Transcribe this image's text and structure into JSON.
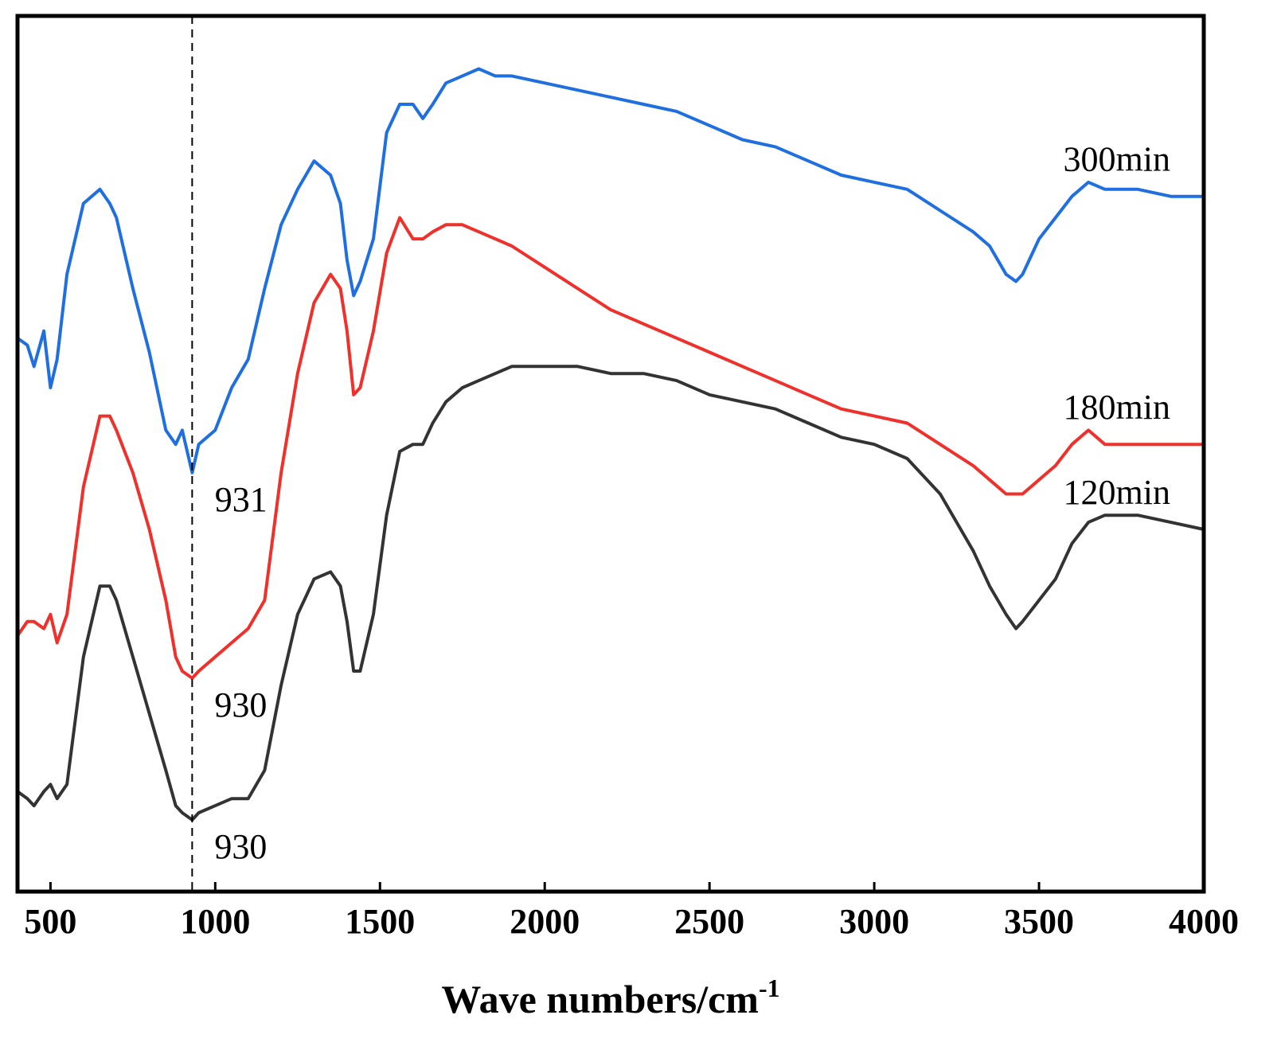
{
  "chart_data": {
    "type": "line",
    "title": "",
    "xlabel": "Wave numbers/cm",
    "xlabel_superscript": "-1",
    "ylabel": "",
    "xlim": [
      400,
      4000
    ],
    "x_ticks": [
      500,
      1000,
      1500,
      2000,
      2500,
      3000,
      3500,
      4000
    ],
    "x_tick_labels": [
      "500",
      "1000",
      "1500",
      "2000",
      "2500",
      "3000",
      "3500",
      "4000"
    ],
    "y_axis_shown": false,
    "grid": false,
    "reference_line": {
      "x": 930,
      "style": "dashed",
      "color": "#000000"
    },
    "series": [
      {
        "name": "300min",
        "color": "#1f6fe0",
        "x": [
          400,
          430,
          450,
          480,
          500,
          520,
          550,
          600,
          650,
          680,
          700,
          750,
          800,
          850,
          880,
          900,
          930,
          950,
          1000,
          1050,
          1100,
          1150,
          1200,
          1250,
          1300,
          1350,
          1380,
          1400,
          1420,
          1440,
          1480,
          1520,
          1560,
          1600,
          1630,
          1660,
          1700,
          1750,
          1800,
          1850,
          1900,
          2000,
          2100,
          2200,
          2300,
          2400,
          2500,
          2600,
          2700,
          2800,
          2900,
          3000,
          3100,
          3200,
          3300,
          3350,
          3400,
          3430,
          3450,
          3500,
          3550,
          3600,
          3650,
          3700,
          3800,
          3900,
          4000
        ],
        "values": [
          77,
          76,
          73,
          78,
          70,
          74,
          86,
          96,
          98,
          96,
          94,
          84,
          75,
          64,
          62,
          64,
          58,
          62,
          64,
          70,
          74,
          84,
          93,
          98,
          102,
          100,
          96,
          88,
          83,
          85,
          91,
          106,
          110,
          110,
          108,
          110,
          113,
          114,
          115,
          114,
          114,
          113,
          112,
          111,
          110,
          109,
          107,
          105,
          104,
          102,
          100,
          99,
          98,
          95,
          92,
          90,
          86,
          85,
          86,
          91,
          94,
          97,
          99,
          98,
          98,
          97,
          97
        ]
      },
      {
        "name": "180min",
        "color": "#f0302a",
        "x": [
          400,
          430,
          450,
          480,
          500,
          520,
          550,
          600,
          650,
          680,
          700,
          750,
          800,
          850,
          880,
          900,
          930,
          950,
          1000,
          1050,
          1100,
          1150,
          1200,
          1250,
          1300,
          1350,
          1380,
          1400,
          1420,
          1440,
          1480,
          1520,
          1560,
          1600,
          1630,
          1660,
          1700,
          1750,
          1800,
          1850,
          1900,
          2000,
          2100,
          2200,
          2300,
          2400,
          2500,
          2600,
          2700,
          2800,
          2900,
          3000,
          3100,
          3200,
          3300,
          3350,
          3400,
          3430,
          3450,
          3500,
          3550,
          3600,
          3650,
          3700,
          3800,
          3900,
          4000
        ],
        "values": [
          35,
          37,
          37,
          36,
          38,
          34,
          38,
          56,
          66,
          66,
          64,
          58,
          50,
          40,
          32,
          30,
          29,
          30,
          32,
          34,
          36,
          40,
          58,
          72,
          82,
          86,
          84,
          78,
          69,
          70,
          78,
          89,
          94,
          91,
          91,
          92,
          93,
          93,
          92,
          91,
          90,
          87,
          84,
          81,
          79,
          77,
          75,
          73,
          71,
          69,
          67,
          66,
          65,
          62,
          59,
          57,
          55,
          55,
          55,
          57,
          59,
          62,
          64,
          62,
          62,
          62,
          62
        ]
      },
      {
        "name": "120min",
        "color": "#333333",
        "x": [
          400,
          430,
          450,
          480,
          500,
          520,
          550,
          600,
          650,
          680,
          700,
          750,
          800,
          850,
          880,
          900,
          930,
          950,
          1000,
          1050,
          1100,
          1150,
          1200,
          1250,
          1300,
          1350,
          1380,
          1400,
          1420,
          1440,
          1480,
          1520,
          1560,
          1600,
          1630,
          1660,
          1700,
          1750,
          1800,
          1850,
          1900,
          2000,
          2100,
          2200,
          2300,
          2400,
          2500,
          2600,
          2700,
          2800,
          2900,
          3000,
          3100,
          3200,
          3300,
          3350,
          3400,
          3430,
          3450,
          3500,
          3550,
          3600,
          3650,
          3700,
          3800,
          3900,
          4000
        ],
        "values": [
          13,
          12,
          11,
          13,
          14,
          12,
          14,
          32,
          42,
          42,
          40,
          32,
          24,
          16,
          11,
          10,
          9,
          10,
          11,
          12,
          12,
          16,
          28,
          38,
          43,
          44,
          42,
          37,
          30,
          30,
          38,
          52,
          61,
          62,
          62,
          65,
          68,
          70,
          71,
          72,
          73,
          73,
          73,
          72,
          72,
          71,
          69,
          68,
          67,
          65,
          63,
          62,
          60,
          55,
          47,
          42,
          38,
          36,
          37,
          40,
          43,
          48,
          51,
          52,
          52,
          51,
          50
        ]
      }
    ],
    "annotations": [
      {
        "text": "931",
        "series": "300min",
        "x": 931
      },
      {
        "text": "930",
        "series": "180min",
        "x": 930
      },
      {
        "text": "930",
        "series": "120min",
        "x": 930
      }
    ]
  }
}
